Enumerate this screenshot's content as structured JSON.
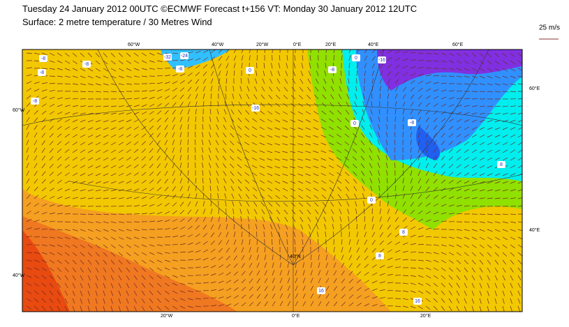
{
  "header": {
    "line1": "Tuesday 24 January 2012 00UTC ©ECMWF Forecast t+156 VT: Monday 30 January 2012 12UTC",
    "line2": "Surface: 2 metre temperature / 30 Metres Wind"
  },
  "legend": {
    "label": "25 m/s"
  },
  "graticule": {
    "top": [
      "60°W",
      "40°W",
      "20°W",
      "0°E",
      "20°E",
      "40°E",
      "60°E"
    ],
    "left": [
      "60°W",
      "40°W"
    ],
    "right": [
      "60°E",
      "40°E"
    ],
    "bottom": [
      "20°W",
      "0°E",
      "20°E"
    ],
    "inner": [
      "40°N"
    ]
  },
  "contours": [
    "-8",
    "-32",
    "-24",
    "-8",
    "-8",
    "-8",
    "0",
    "-8",
    "-16",
    "-8",
    "0",
    "-16",
    "-8",
    "0",
    "8",
    "0",
    "8",
    "8",
    "16",
    "16"
  ]
}
